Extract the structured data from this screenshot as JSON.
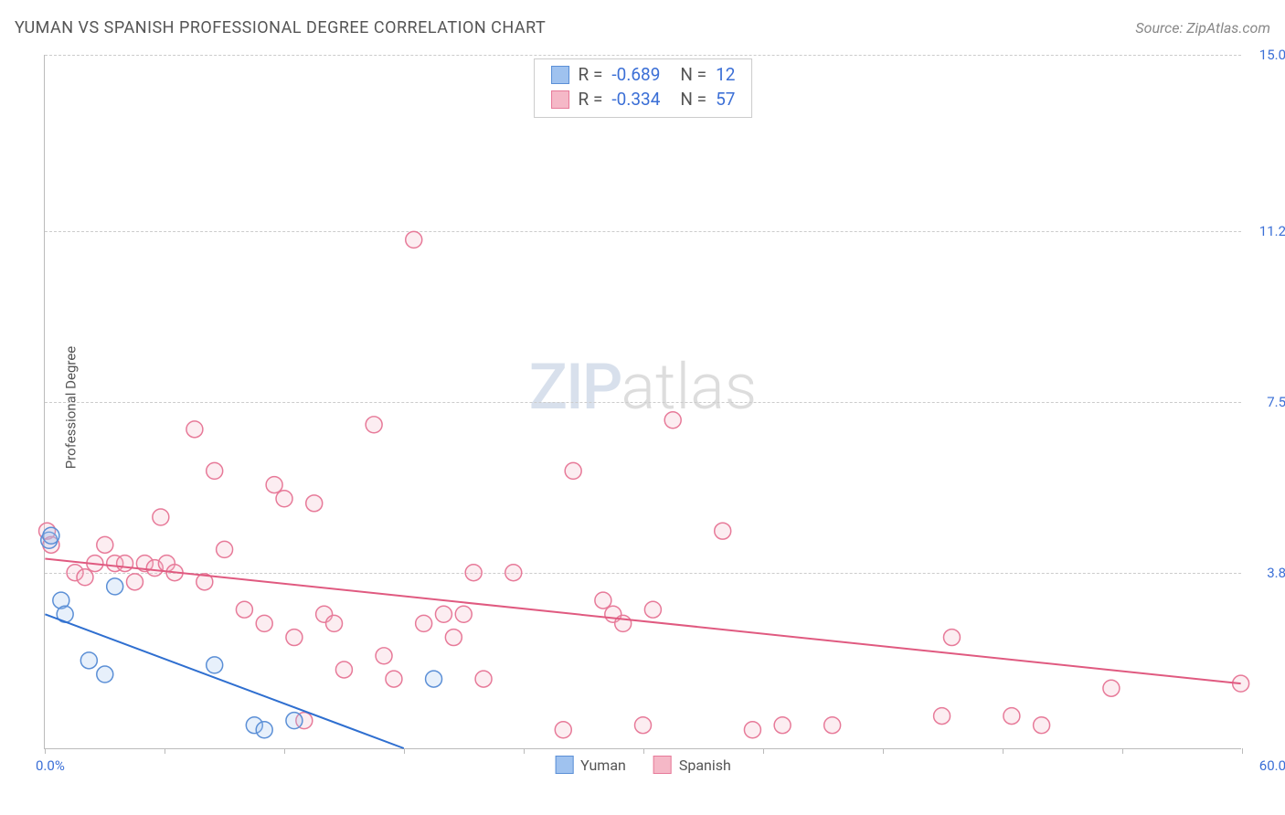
{
  "header": {
    "title": "YUMAN VS SPANISH PROFESSIONAL DEGREE CORRELATION CHART",
    "source": "Source: ZipAtlas.com"
  },
  "ylabel": "Professional Degree",
  "watermark": {
    "part1": "ZIP",
    "part2": "atlas"
  },
  "chart": {
    "type": "scatter",
    "xlim": [
      0,
      60
    ],
    "ylim": [
      0,
      15
    ],
    "x_min_label": "0.0%",
    "x_max_label": "60.0%",
    "y_ticks": [
      3.8,
      7.5,
      11.2,
      15.0
    ],
    "y_tick_labels": [
      "3.8%",
      "7.5%",
      "11.2%",
      "15.0%"
    ],
    "x_ticks": [
      0,
      6,
      12,
      18,
      24,
      30,
      36,
      42,
      48,
      54,
      60
    ],
    "background_color": "#ffffff",
    "grid_color": "#cccccc",
    "marker_radius": 9,
    "marker_fill_opacity": 0.25,
    "marker_stroke_width": 1.5,
    "line_width": 2
  },
  "series": {
    "yuman": {
      "label": "Yuman",
      "color_fill": "#9fc2ef",
      "color_stroke": "#5b8fd6",
      "line_color": "#2f6fd0",
      "R": "-0.689",
      "N": "12",
      "points": [
        [
          0.2,
          4.5
        ],
        [
          0.3,
          4.6
        ],
        [
          0.8,
          3.2
        ],
        [
          1.0,
          2.9
        ],
        [
          2.2,
          1.9
        ],
        [
          3.0,
          1.6
        ],
        [
          3.5,
          3.5
        ],
        [
          8.5,
          1.8
        ],
        [
          10.5,
          0.5
        ],
        [
          11.0,
          0.4
        ],
        [
          12.5,
          0.6
        ],
        [
          19.5,
          1.5
        ]
      ],
      "trend": {
        "x1": 0,
        "y1": 2.9,
        "x2": 18,
        "y2": 0
      }
    },
    "spanish": {
      "label": "Spanish",
      "color_fill": "#f5b8c7",
      "color_stroke": "#e77a99",
      "line_color": "#e05a80",
      "R": "-0.334",
      "N": "57",
      "points": [
        [
          0.1,
          4.7
        ],
        [
          0.3,
          4.4
        ],
        [
          1.5,
          3.8
        ],
        [
          2.0,
          3.7
        ],
        [
          2.5,
          4.0
        ],
        [
          3.0,
          4.4
        ],
        [
          3.5,
          4.0
        ],
        [
          4.0,
          4.0
        ],
        [
          4.5,
          3.6
        ],
        [
          5.0,
          4.0
        ],
        [
          5.5,
          3.9
        ],
        [
          5.8,
          5.0
        ],
        [
          6.1,
          4.0
        ],
        [
          6.5,
          3.8
        ],
        [
          7.5,
          6.9
        ],
        [
          8.0,
          3.6
        ],
        [
          8.5,
          6.0
        ],
        [
          9.0,
          4.3
        ],
        [
          10.0,
          3.0
        ],
        [
          11.0,
          2.7
        ],
        [
          11.5,
          5.7
        ],
        [
          12.0,
          5.4
        ],
        [
          12.5,
          2.4
        ],
        [
          13.0,
          0.6
        ],
        [
          13.5,
          5.3
        ],
        [
          14.0,
          2.9
        ],
        [
          14.5,
          2.7
        ],
        [
          15.0,
          1.7
        ],
        [
          16.5,
          7.0
        ],
        [
          17.0,
          2.0
        ],
        [
          17.5,
          1.5
        ],
        [
          18.5,
          11.0
        ],
        [
          19.0,
          2.7
        ],
        [
          20.0,
          2.9
        ],
        [
          20.5,
          2.4
        ],
        [
          21.0,
          2.9
        ],
        [
          21.5,
          3.8
        ],
        [
          22.0,
          1.5
        ],
        [
          23.5,
          3.8
        ],
        [
          26.0,
          0.4
        ],
        [
          26.5,
          6.0
        ],
        [
          28.0,
          3.2
        ],
        [
          28.5,
          2.9
        ],
        [
          29.0,
          2.7
        ],
        [
          30.0,
          0.5
        ],
        [
          30.5,
          3.0
        ],
        [
          31.5,
          7.1
        ],
        [
          34.0,
          4.7
        ],
        [
          35.5,
          0.4
        ],
        [
          37.0,
          0.5
        ],
        [
          39.5,
          0.5
        ],
        [
          45.0,
          0.7
        ],
        [
          45.5,
          2.4
        ],
        [
          48.5,
          0.7
        ],
        [
          50.0,
          0.5
        ],
        [
          53.5,
          1.3
        ],
        [
          60.0,
          1.4
        ]
      ],
      "trend": {
        "x1": 0,
        "y1": 4.1,
        "x2": 60,
        "y2": 1.4
      }
    }
  }
}
